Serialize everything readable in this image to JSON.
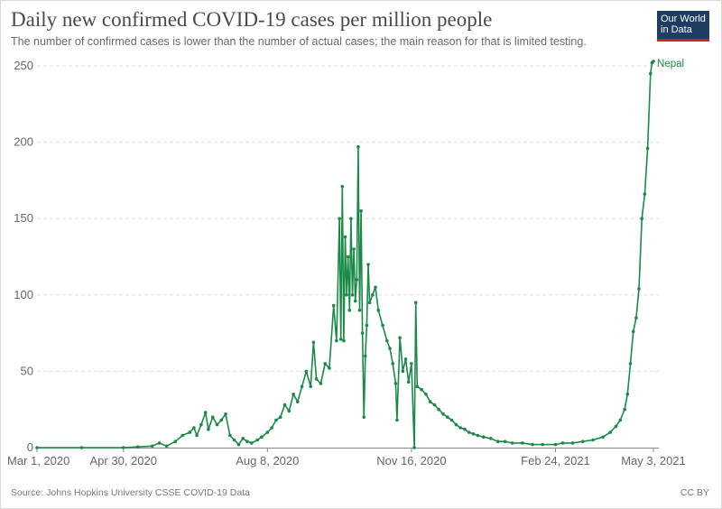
{
  "header": {
    "title": "Daily new confirmed COVID-19 cases per million people",
    "subtitle": "The number of confirmed cases is lower than the number of actual cases; the main reason for that is limited testing."
  },
  "logo": {
    "line1": "Our World",
    "line2": "in Data"
  },
  "footer": {
    "source": "Source: Johns Hopkins University CSSE COVID-19 Data",
    "license": "CC BY"
  },
  "colors": {
    "series": "#1a8a46",
    "grid": "#dddddd",
    "axis": "#888888"
  },
  "chart_data": {
    "type": "line",
    "title": "Daily new confirmed COVID-19 cases per million people",
    "xlabel": "",
    "ylabel": "",
    "xlim": [
      "2020-03-01",
      "2021-05-03"
    ],
    "ylim": [
      0,
      250
    ],
    "y_ticks": [
      0,
      50,
      100,
      150,
      200,
      250
    ],
    "y_tick_labels": [
      "0",
      "50",
      "100",
      "150",
      "200",
      "250"
    ],
    "x_ticks": [
      "2020-03-01",
      "2020-04-30",
      "2020-08-08",
      "2020-11-16",
      "2021-02-24",
      "2021-05-03"
    ],
    "x_tick_labels": [
      "Mar 1, 2020",
      "Apr 30, 2020",
      "Aug 8, 2020",
      "Nov 16, 2020",
      "Feb 24, 2021",
      "May 3, 2021"
    ],
    "grid": "horizontal",
    "series": [
      {
        "name": "Nepal",
        "points": [
          [
            "2020-03-01",
            0
          ],
          [
            "2020-04-01",
            0
          ],
          [
            "2020-04-30",
            0
          ],
          [
            "2020-05-10",
            0.5
          ],
          [
            "2020-05-20",
            1
          ],
          [
            "2020-05-25",
            3
          ],
          [
            "2020-05-30",
            1
          ],
          [
            "2020-06-05",
            4
          ],
          [
            "2020-06-10",
            8
          ],
          [
            "2020-06-15",
            10
          ],
          [
            "2020-06-18",
            13
          ],
          [
            "2020-06-20",
            8
          ],
          [
            "2020-06-23",
            15
          ],
          [
            "2020-06-26",
            23
          ],
          [
            "2020-06-28",
            12
          ],
          [
            "2020-07-01",
            20
          ],
          [
            "2020-07-04",
            15
          ],
          [
            "2020-07-07",
            18
          ],
          [
            "2020-07-10",
            22
          ],
          [
            "2020-07-13",
            8
          ],
          [
            "2020-07-16",
            5
          ],
          [
            "2020-07-19",
            2
          ],
          [
            "2020-07-22",
            6
          ],
          [
            "2020-07-25",
            4
          ],
          [
            "2020-07-28",
            3
          ],
          [
            "2020-08-01",
            5
          ],
          [
            "2020-08-04",
            7
          ],
          [
            "2020-08-08",
            10
          ],
          [
            "2020-08-11",
            13
          ],
          [
            "2020-08-14",
            18
          ],
          [
            "2020-08-17",
            20
          ],
          [
            "2020-08-20",
            28
          ],
          [
            "2020-08-23",
            24
          ],
          [
            "2020-08-26",
            35
          ],
          [
            "2020-08-29",
            30
          ],
          [
            "2020-09-01",
            40
          ],
          [
            "2020-09-04",
            50
          ],
          [
            "2020-09-07",
            40
          ],
          [
            "2020-09-09",
            69
          ],
          [
            "2020-09-11",
            45
          ],
          [
            "2020-09-14",
            42
          ],
          [
            "2020-09-17",
            55
          ],
          [
            "2020-09-20",
            52
          ],
          [
            "2020-09-23",
            93
          ],
          [
            "2020-09-25",
            70
          ],
          [
            "2020-09-27",
            150
          ],
          [
            "2020-09-28",
            71
          ],
          [
            "2020-09-29",
            171
          ],
          [
            "2020-09-30",
            70
          ],
          [
            "2020-10-01",
            138
          ],
          [
            "2020-10-02",
            100
          ],
          [
            "2020-10-03",
            125
          ],
          [
            "2020-10-04",
            90
          ],
          [
            "2020-10-05",
            150
          ],
          [
            "2020-10-06",
            100
          ],
          [
            "2020-10-07",
            130
          ],
          [
            "2020-10-08",
            96
          ],
          [
            "2020-10-09",
            110
          ],
          [
            "2020-10-10",
            197
          ],
          [
            "2020-10-11",
            90
          ],
          [
            "2020-10-12",
            155
          ],
          [
            "2020-10-13",
            75
          ],
          [
            "2020-10-14",
            20
          ],
          [
            "2020-10-15",
            60
          ],
          [
            "2020-10-16",
            80
          ],
          [
            "2020-10-17",
            120
          ],
          [
            "2020-10-18",
            95
          ],
          [
            "2020-10-20",
            100
          ],
          [
            "2020-10-22",
            105
          ],
          [
            "2020-10-24",
            90
          ],
          [
            "2020-10-27",
            80
          ],
          [
            "2020-10-30",
            70
          ],
          [
            "2020-11-01",
            65
          ],
          [
            "2020-11-03",
            55
          ],
          [
            "2020-11-05",
            42
          ],
          [
            "2020-11-06",
            18
          ],
          [
            "2020-11-08",
            72
          ],
          [
            "2020-11-10",
            50
          ],
          [
            "2020-11-12",
            58
          ],
          [
            "2020-11-14",
            43
          ],
          [
            "2020-11-16",
            55
          ],
          [
            "2020-11-18",
            0
          ],
          [
            "2020-11-19",
            95
          ],
          [
            "2020-11-20",
            40
          ],
          [
            "2020-11-23",
            38
          ],
          [
            "2020-11-26",
            35
          ],
          [
            "2020-11-29",
            30
          ],
          [
            "2020-12-02",
            28
          ],
          [
            "2020-12-05",
            25
          ],
          [
            "2020-12-08",
            22
          ],
          [
            "2020-12-11",
            20
          ],
          [
            "2020-12-14",
            18
          ],
          [
            "2020-12-17",
            15
          ],
          [
            "2020-12-20",
            13
          ],
          [
            "2020-12-23",
            12
          ],
          [
            "2020-12-26",
            10
          ],
          [
            "2020-12-29",
            9
          ],
          [
            "2021-01-01",
            8
          ],
          [
            "2021-01-05",
            7
          ],
          [
            "2021-01-10",
            6
          ],
          [
            "2021-01-15",
            4
          ],
          [
            "2021-01-20",
            4
          ],
          [
            "2021-01-25",
            3
          ],
          [
            "2021-02-01",
            3
          ],
          [
            "2021-02-08",
            2
          ],
          [
            "2021-02-15",
            2
          ],
          [
            "2021-02-24",
            2
          ],
          [
            "2021-03-01",
            3
          ],
          [
            "2021-03-08",
            3
          ],
          [
            "2021-03-15",
            4
          ],
          [
            "2021-03-22",
            5
          ],
          [
            "2021-03-29",
            7
          ],
          [
            "2021-04-03",
            10
          ],
          [
            "2021-04-07",
            14
          ],
          [
            "2021-04-10",
            18
          ],
          [
            "2021-04-13",
            25
          ],
          [
            "2021-04-15",
            35
          ],
          [
            "2021-04-17",
            55
          ],
          [
            "2021-04-19",
            76
          ],
          [
            "2021-04-21",
            85
          ],
          [
            "2021-04-23",
            104
          ],
          [
            "2021-04-25",
            150
          ],
          [
            "2021-04-27",
            166
          ],
          [
            "2021-04-29",
            196
          ],
          [
            "2021-05-01",
            245
          ],
          [
            "2021-05-02",
            252
          ],
          [
            "2021-05-03",
            253
          ]
        ]
      }
    ]
  }
}
